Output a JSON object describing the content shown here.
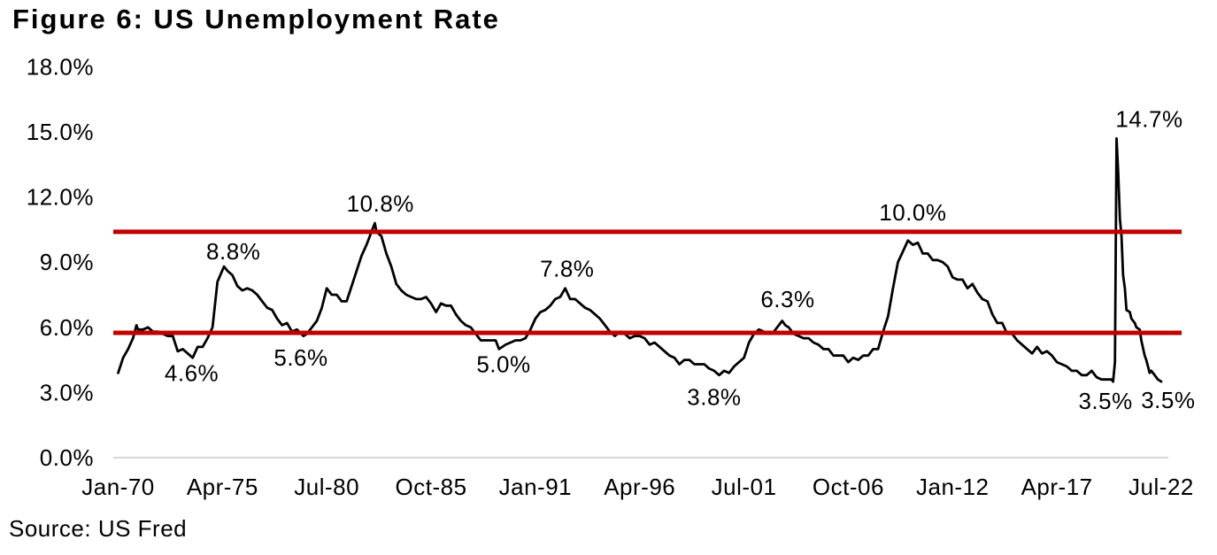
{
  "page": {
    "title": "Figure 6: US Unemployment Rate",
    "source": "Source: US Fred"
  },
  "chart_data": {
    "type": "line",
    "title": "Figure 6: US Unemployment Rate",
    "source": "Source: US Fred",
    "xlabel": "",
    "ylabel": "",
    "ylim": [
      0,
      18
    ],
    "grid": false,
    "legend": "none",
    "axis_color": "#d9d9d9",
    "text_color": "#000000",
    "y_ticks": [
      {
        "label": "18.0%",
        "value": 18
      },
      {
        "label": "15.0%",
        "value": 15
      },
      {
        "label": "12.0%",
        "value": 12
      },
      {
        "label": "9.0%",
        "value": 9
      },
      {
        "label": "6.0%",
        "value": 6
      },
      {
        "label": "3.0%",
        "value": 3
      },
      {
        "label": "0.0%",
        "value": 0
      }
    ],
    "x_ticks": [
      {
        "label": "Jan-70",
        "year": 1970.0
      },
      {
        "label": "Apr-75",
        "year": 1975.25
      },
      {
        "label": "Jul-80",
        "year": 1980.5
      },
      {
        "label": "Oct-85",
        "year": 1985.75
      },
      {
        "label": "Jan-91",
        "year": 1991.0
      },
      {
        "label": "Apr-96",
        "year": 1996.25
      },
      {
        "label": "Jul-01",
        "year": 2001.5
      },
      {
        "label": "Oct-06",
        "year": 2006.75
      },
      {
        "label": "Jan-12",
        "year": 2012.0
      },
      {
        "label": "Apr-17",
        "year": 2017.25
      },
      {
        "label": "Jul-22",
        "year": 2022.5
      }
    ],
    "reference_lines": [
      {
        "value": 10.4,
        "color": "#c00000"
      },
      {
        "value": 5.75,
        "color": "#c00000"
      }
    ],
    "annotations": [
      {
        "text": "4.6%",
        "year": 1973.7,
        "value": 3.9
      },
      {
        "text": "8.8%",
        "year": 1975.8,
        "value": 9.5
      },
      {
        "text": "5.6%",
        "year": 1979.2,
        "value": 4.6
      },
      {
        "text": "10.8%",
        "year": 1983.2,
        "value": 11.7
      },
      {
        "text": "5.0%",
        "year": 1989.4,
        "value": 4.3
      },
      {
        "text": "7.8%",
        "year": 1992.6,
        "value": 8.7
      },
      {
        "text": "3.8%",
        "year": 2000.0,
        "value": 2.8
      },
      {
        "text": "6.3%",
        "year": 2003.7,
        "value": 7.3
      },
      {
        "text": "10.0%",
        "year": 2010.0,
        "value": 11.3
      },
      {
        "text": "14.7%",
        "year": 2021.9,
        "value": 15.6
      },
      {
        "text": "3.5%",
        "year": 2019.7,
        "value": 2.6
      },
      {
        "text": "3.5%",
        "year": 2022.85,
        "value": 2.65
      }
    ],
    "series": [
      {
        "name": "US Unemployment Rate",
        "color": "#000000",
        "points": [
          [
            1970.0,
            3.9
          ],
          [
            1970.25,
            4.6
          ],
          [
            1970.5,
            5.0
          ],
          [
            1970.75,
            5.5
          ],
          [
            1970.92,
            6.1
          ],
          [
            1971.0,
            5.9
          ],
          [
            1971.25,
            5.9
          ],
          [
            1971.5,
            6.0
          ],
          [
            1971.75,
            5.8
          ],
          [
            1972.0,
            5.8
          ],
          [
            1972.25,
            5.7
          ],
          [
            1972.5,
            5.6
          ],
          [
            1972.75,
            5.6
          ],
          [
            1973.0,
            4.9
          ],
          [
            1973.25,
            5.0
          ],
          [
            1973.5,
            4.8
          ],
          [
            1973.75,
            4.6
          ],
          [
            1974.0,
            5.1
          ],
          [
            1974.25,
            5.1
          ],
          [
            1974.5,
            5.5
          ],
          [
            1974.75,
            6.0
          ],
          [
            1975.0,
            8.1
          ],
          [
            1975.33,
            8.8
          ],
          [
            1975.5,
            8.6
          ],
          [
            1975.75,
            8.4
          ],
          [
            1976.0,
            7.9
          ],
          [
            1976.25,
            7.7
          ],
          [
            1976.5,
            7.8
          ],
          [
            1976.75,
            7.7
          ],
          [
            1977.0,
            7.5
          ],
          [
            1977.25,
            7.2
          ],
          [
            1977.5,
            6.9
          ],
          [
            1977.75,
            6.8
          ],
          [
            1978.0,
            6.4
          ],
          [
            1978.25,
            6.1
          ],
          [
            1978.5,
            6.2
          ],
          [
            1978.75,
            5.8
          ],
          [
            1979.0,
            5.9
          ],
          [
            1979.33,
            5.6
          ],
          [
            1979.5,
            5.7
          ],
          [
            1979.75,
            6.0
          ],
          [
            1980.0,
            6.3
          ],
          [
            1980.25,
            6.9
          ],
          [
            1980.5,
            7.8
          ],
          [
            1980.75,
            7.5
          ],
          [
            1981.0,
            7.5
          ],
          [
            1981.25,
            7.2
          ],
          [
            1981.5,
            7.2
          ],
          [
            1981.75,
            7.9
          ],
          [
            1982.0,
            8.6
          ],
          [
            1982.25,
            9.3
          ],
          [
            1982.5,
            9.8
          ],
          [
            1982.75,
            10.4
          ],
          [
            1982.92,
            10.8
          ],
          [
            1983.0,
            10.4
          ],
          [
            1983.25,
            10.2
          ],
          [
            1983.5,
            9.4
          ],
          [
            1983.75,
            8.8
          ],
          [
            1984.0,
            8.0
          ],
          [
            1984.25,
            7.7
          ],
          [
            1984.5,
            7.5
          ],
          [
            1984.75,
            7.4
          ],
          [
            1985.0,
            7.3
          ],
          [
            1985.25,
            7.3
          ],
          [
            1985.5,
            7.4
          ],
          [
            1985.75,
            7.1
          ],
          [
            1986.0,
            6.7
          ],
          [
            1986.25,
            7.1
          ],
          [
            1986.5,
            7.0
          ],
          [
            1986.75,
            7.0
          ],
          [
            1987.0,
            6.6
          ],
          [
            1987.25,
            6.3
          ],
          [
            1987.5,
            6.1
          ],
          [
            1987.75,
            6.0
          ],
          [
            1988.0,
            5.7
          ],
          [
            1988.25,
            5.4
          ],
          [
            1988.5,
            5.4
          ],
          [
            1988.75,
            5.4
          ],
          [
            1989.0,
            5.4
          ],
          [
            1989.17,
            5.0
          ],
          [
            1989.5,
            5.2
          ],
          [
            1989.75,
            5.3
          ],
          [
            1990.0,
            5.4
          ],
          [
            1990.25,
            5.4
          ],
          [
            1990.5,
            5.5
          ],
          [
            1990.75,
            5.9
          ],
          [
            1991.0,
            6.4
          ],
          [
            1991.25,
            6.7
          ],
          [
            1991.5,
            6.8
          ],
          [
            1991.75,
            7.0
          ],
          [
            1992.0,
            7.3
          ],
          [
            1992.25,
            7.4
          ],
          [
            1992.5,
            7.8
          ],
          [
            1992.75,
            7.3
          ],
          [
            1993.0,
            7.3
          ],
          [
            1993.25,
            7.1
          ],
          [
            1993.5,
            6.9
          ],
          [
            1993.75,
            6.8
          ],
          [
            1994.0,
            6.6
          ],
          [
            1994.25,
            6.4
          ],
          [
            1994.5,
            6.1
          ],
          [
            1994.75,
            5.8
          ],
          [
            1995.0,
            5.6
          ],
          [
            1995.25,
            5.8
          ],
          [
            1995.5,
            5.7
          ],
          [
            1995.75,
            5.5
          ],
          [
            1996.0,
            5.6
          ],
          [
            1996.25,
            5.6
          ],
          [
            1996.5,
            5.5
          ],
          [
            1996.75,
            5.2
          ],
          [
            1997.0,
            5.3
          ],
          [
            1997.25,
            5.1
          ],
          [
            1997.5,
            4.9
          ],
          [
            1997.75,
            4.7
          ],
          [
            1998.0,
            4.6
          ],
          [
            1998.25,
            4.3
          ],
          [
            1998.5,
            4.5
          ],
          [
            1998.75,
            4.5
          ],
          [
            1999.0,
            4.3
          ],
          [
            1999.25,
            4.3
          ],
          [
            1999.5,
            4.3
          ],
          [
            1999.75,
            4.1
          ],
          [
            2000.0,
            4.0
          ],
          [
            2000.25,
            3.8
          ],
          [
            2000.5,
            4.0
          ],
          [
            2000.75,
            3.9
          ],
          [
            2001.0,
            4.2
          ],
          [
            2001.25,
            4.4
          ],
          [
            2001.5,
            4.6
          ],
          [
            2001.75,
            5.3
          ],
          [
            2002.0,
            5.7
          ],
          [
            2002.25,
            5.9
          ],
          [
            2002.5,
            5.8
          ],
          [
            2002.75,
            5.7
          ],
          [
            2003.0,
            5.8
          ],
          [
            2003.42,
            6.3
          ],
          [
            2003.58,
            6.1
          ],
          [
            2003.75,
            6.0
          ],
          [
            2004.0,
            5.7
          ],
          [
            2004.25,
            5.6
          ],
          [
            2004.5,
            5.5
          ],
          [
            2004.75,
            5.5
          ],
          [
            2005.0,
            5.3
          ],
          [
            2005.25,
            5.2
          ],
          [
            2005.5,
            5.0
          ],
          [
            2005.75,
            5.0
          ],
          [
            2006.0,
            4.7
          ],
          [
            2006.25,
            4.7
          ],
          [
            2006.5,
            4.7
          ],
          [
            2006.75,
            4.4
          ],
          [
            2007.0,
            4.6
          ],
          [
            2007.25,
            4.5
          ],
          [
            2007.5,
            4.7
          ],
          [
            2007.75,
            4.7
          ],
          [
            2008.0,
            5.0
          ],
          [
            2008.25,
            5.0
          ],
          [
            2008.5,
            5.8
          ],
          [
            2008.75,
            6.5
          ],
          [
            2009.0,
            7.8
          ],
          [
            2009.25,
            9.0
          ],
          [
            2009.5,
            9.5
          ],
          [
            2009.75,
            10.0
          ],
          [
            2010.0,
            9.8
          ],
          [
            2010.25,
            9.9
          ],
          [
            2010.5,
            9.4
          ],
          [
            2010.75,
            9.4
          ],
          [
            2011.0,
            9.1
          ],
          [
            2011.25,
            9.1
          ],
          [
            2011.5,
            9.0
          ],
          [
            2011.75,
            8.8
          ],
          [
            2012.0,
            8.3
          ],
          [
            2012.25,
            8.2
          ],
          [
            2012.5,
            8.2
          ],
          [
            2012.75,
            7.8
          ],
          [
            2013.0,
            8.0
          ],
          [
            2013.25,
            7.6
          ],
          [
            2013.5,
            7.3
          ],
          [
            2013.75,
            7.2
          ],
          [
            2014.0,
            6.6
          ],
          [
            2014.25,
            6.2
          ],
          [
            2014.5,
            6.2
          ],
          [
            2014.75,
            5.7
          ],
          [
            2015.0,
            5.7
          ],
          [
            2015.25,
            5.4
          ],
          [
            2015.5,
            5.2
          ],
          [
            2015.75,
            5.0
          ],
          [
            2016.0,
            4.8
          ],
          [
            2016.25,
            5.1
          ],
          [
            2016.5,
            4.8
          ],
          [
            2016.75,
            4.9
          ],
          [
            2017.0,
            4.7
          ],
          [
            2017.25,
            4.4
          ],
          [
            2017.5,
            4.3
          ],
          [
            2017.75,
            4.2
          ],
          [
            2018.0,
            4.0
          ],
          [
            2018.25,
            4.0
          ],
          [
            2018.5,
            3.8
          ],
          [
            2018.75,
            3.8
          ],
          [
            2019.0,
            4.0
          ],
          [
            2019.25,
            3.7
          ],
          [
            2019.5,
            3.6
          ],
          [
            2019.75,
            3.6
          ],
          [
            2020.0,
            3.6
          ],
          [
            2020.08,
            3.5
          ],
          [
            2020.17,
            4.4
          ],
          [
            2020.25,
            14.7
          ],
          [
            2020.33,
            13.2
          ],
          [
            2020.42,
            11.0
          ],
          [
            2020.5,
            10.2
          ],
          [
            2020.58,
            8.4
          ],
          [
            2020.67,
            7.8
          ],
          [
            2020.75,
            6.8
          ],
          [
            2020.92,
            6.7
          ],
          [
            2021.0,
            6.4
          ],
          [
            2021.17,
            6.2
          ],
          [
            2021.25,
            6.0
          ],
          [
            2021.42,
            5.9
          ],
          [
            2021.5,
            5.4
          ],
          [
            2021.67,
            4.7
          ],
          [
            2021.75,
            4.5
          ],
          [
            2021.92,
            3.9
          ],
          [
            2022.0,
            4.0
          ],
          [
            2022.17,
            3.8
          ],
          [
            2022.33,
            3.6
          ],
          [
            2022.5,
            3.5
          ]
        ]
      }
    ]
  }
}
